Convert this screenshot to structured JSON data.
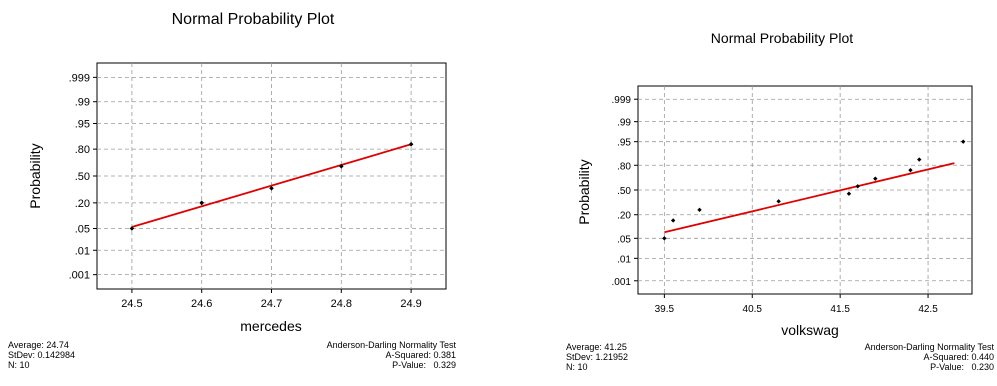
{
  "colors": {
    "fit_line": "#e00000",
    "points": "#000000",
    "grid": "#9a9a9a",
    "frame": "#000000"
  },
  "plots": [
    {
      "title": "Normal Probability Plot",
      "stats": {
        "average": "Average: 24.74",
        "stdev": "StDev: 0.142984",
        "n": "N: 10"
      },
      "test": {
        "name": "Anderson-Darling Normality Test",
        "a_squared": "A-Squared: 0.381",
        "p_value": "P-Value:   0.329"
      }
    },
    {
      "title": "Normal Probability Plot",
      "stats": {
        "average": "Average: 41.25",
        "stdev": "StDev: 1.21952",
        "n": "N: 10"
      },
      "test": {
        "name": "Anderson-Darling Normality Test",
        "a_squared": "A-Squared: 0.440",
        "p_value": "P-Value:   0.230"
      }
    }
  ],
  "chart_data": [
    {
      "type": "scatter",
      "title": "Normal Probability Plot",
      "xlabel": "mercedes",
      "ylabel": "Probability",
      "x_ticks": [
        24.5,
        24.6,
        24.7,
        24.8,
        24.9
      ],
      "x_tick_labels": [
        "24.5",
        "24.6",
        "24.7",
        "24.8",
        "24.9"
      ],
      "xlim": [
        24.45,
        24.95
      ],
      "y_ticks": [
        0.001,
        0.01,
        0.05,
        0.2,
        0.5,
        0.8,
        0.95,
        0.99,
        0.999
      ],
      "y_tick_labels": [
        ".001",
        ".01",
        ".05",
        ".20",
        ".50",
        ".80",
        ".95",
        ".99",
        ".999"
      ],
      "ylim": [
        0.0002,
        0.9998
      ],
      "y_scale": "normal-probability",
      "grid": true,
      "points": [
        {
          "x": 24.5,
          "y": 0.05
        },
        {
          "x": 24.6,
          "y": 0.2
        },
        {
          "x": 24.6,
          "y": 0.2
        },
        {
          "x": 24.6,
          "y": 0.2
        },
        {
          "x": 24.7,
          "y": 0.35
        },
        {
          "x": 24.7,
          "y": 0.35
        },
        {
          "x": 24.8,
          "y": 0.62
        },
        {
          "x": 24.8,
          "y": 0.62
        },
        {
          "x": 24.9,
          "y": 0.84
        },
        {
          "x": 24.9,
          "y": 0.84
        }
      ],
      "fit_line": {
        "x": [
          24.5,
          24.9
        ],
        "y": [
          0.055,
          0.84
        ]
      }
    },
    {
      "type": "scatter",
      "title": "Normal Probability Plot",
      "xlabel": "volkswag",
      "ylabel": "Probability",
      "x_ticks": [
        39.5,
        40.5,
        41.5,
        42.5
      ],
      "x_tick_labels": [
        "39.5",
        "40.5",
        "41.5",
        "42.5"
      ],
      "xlim": [
        39.2,
        43.0
      ],
      "y_ticks": [
        0.001,
        0.01,
        0.05,
        0.2,
        0.5,
        0.8,
        0.95,
        0.99,
        0.999
      ],
      "y_tick_labels": [
        ".001",
        ".01",
        ".05",
        ".20",
        ".50",
        ".80",
        ".95",
        ".99",
        ".999"
      ],
      "ylim": [
        0.0002,
        0.9998
      ],
      "y_scale": "normal-probability",
      "grid": true,
      "points": [
        {
          "x": 39.5,
          "y": 0.05
        },
        {
          "x": 39.6,
          "y": 0.15
        },
        {
          "x": 39.9,
          "y": 0.25
        },
        {
          "x": 40.8,
          "y": 0.35
        },
        {
          "x": 41.6,
          "y": 0.45
        },
        {
          "x": 41.7,
          "y": 0.55
        },
        {
          "x": 41.9,
          "y": 0.65
        },
        {
          "x": 42.3,
          "y": 0.75
        },
        {
          "x": 42.4,
          "y": 0.85
        },
        {
          "x": 42.9,
          "y": 0.95
        }
      ],
      "fit_line": {
        "x": [
          39.5,
          42.8
        ],
        "y": [
          0.075,
          0.82
        ]
      }
    }
  ]
}
